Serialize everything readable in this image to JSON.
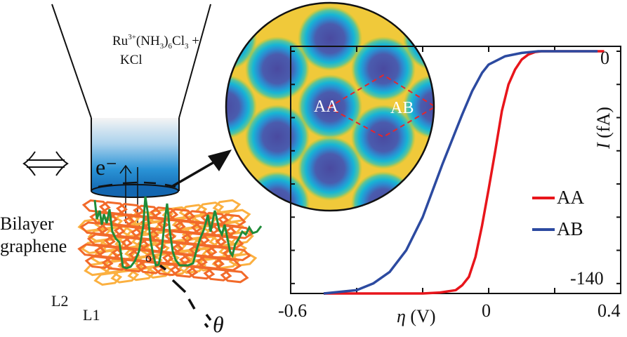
{
  "schematic": {
    "solution_label": {
      "base": "Ru",
      "charge": "3+",
      "ligand_open": "(NH",
      "nh3_sub": "3",
      "ligand_close": ")",
      "count_sub": "6",
      "cl": "Cl",
      "cl_sub": "3",
      "plus": " +"
    },
    "solution_label_line2": "KCl",
    "equivalence_symbol": "⇔",
    "electron_label": "e⁻",
    "sample_label_line1": "Bilayer",
    "sample_label_line2": "graphene",
    "origin_label": "o",
    "layer_labels": [
      "L2",
      "L1"
    ],
    "angle_label": "θ",
    "colors": {
      "tip_top": "#f2f2f2",
      "tip_bottom": "#1577c4",
      "trace": "#1f8c3a",
      "layer1": "#f26a2a",
      "layer2": "#fbb040"
    }
  },
  "inset": {
    "labels": [
      "AA",
      "AB"
    ],
    "colors": {
      "deep": "#4a4fa3",
      "cyan": "#19b3d6",
      "green": "#9cc83a",
      "yellow": "#f3e21f",
      "orange": "#f7b23a",
      "unitcell": "#e5262c"
    }
  },
  "chart_data": {
    "type": "line",
    "title": "",
    "xlabel": "η (V)",
    "ylabel": "I (fA)",
    "xlim": [
      -0.6,
      0.4
    ],
    "ylim": [
      -140,
      0
    ],
    "x_ticks": [
      -0.6,
      -0.4,
      -0.2,
      0,
      0.2,
      0.4
    ],
    "x_tick_labels": [
      "-0.6",
      "",
      "",
      "0",
      "",
      "0.4"
    ],
    "y_ticks": [
      0,
      -20,
      -40,
      -60,
      -80,
      -100,
      -120,
      -140
    ],
    "y_tick_labels": [
      "0",
      "",
      "",
      "",
      "",
      "",
      "",
      "-140"
    ],
    "grid": false,
    "legend_position": "lower right",
    "series": [
      {
        "name": "AA",
        "color": "#e8151b",
        "x": [
          -0.5,
          -0.4,
          -0.3,
          -0.2,
          -0.15,
          -0.1,
          -0.08,
          -0.06,
          -0.04,
          -0.02,
          0.0,
          0.02,
          0.04,
          0.06,
          0.08,
          0.1,
          0.12,
          0.14,
          0.16,
          0.2,
          0.3,
          0.35
        ],
        "y": [
          -146,
          -146,
          -146,
          -146,
          -145.5,
          -144,
          -141,
          -136,
          -124,
          -105,
          -83,
          -60,
          -36,
          -20,
          -11,
          -5,
          -2,
          -0.5,
          0,
          0,
          0,
          0
        ]
      },
      {
        "name": "AB",
        "color": "#2c4aa0",
        "x": [
          -0.5,
          -0.4,
          -0.35,
          -0.3,
          -0.25,
          -0.2,
          -0.17,
          -0.14,
          -0.12,
          -0.1,
          -0.08,
          -0.05,
          -0.02,
          0.0,
          0.05,
          0.1,
          0.15,
          0.2,
          0.3,
          0.33
        ],
        "y": [
          -146,
          -144,
          -140,
          -133,
          -120,
          -100,
          -84,
          -68,
          -58,
          -48,
          -38,
          -24,
          -13,
          -8,
          -3,
          -1,
          0,
          0,
          0,
          0
        ]
      }
    ]
  }
}
